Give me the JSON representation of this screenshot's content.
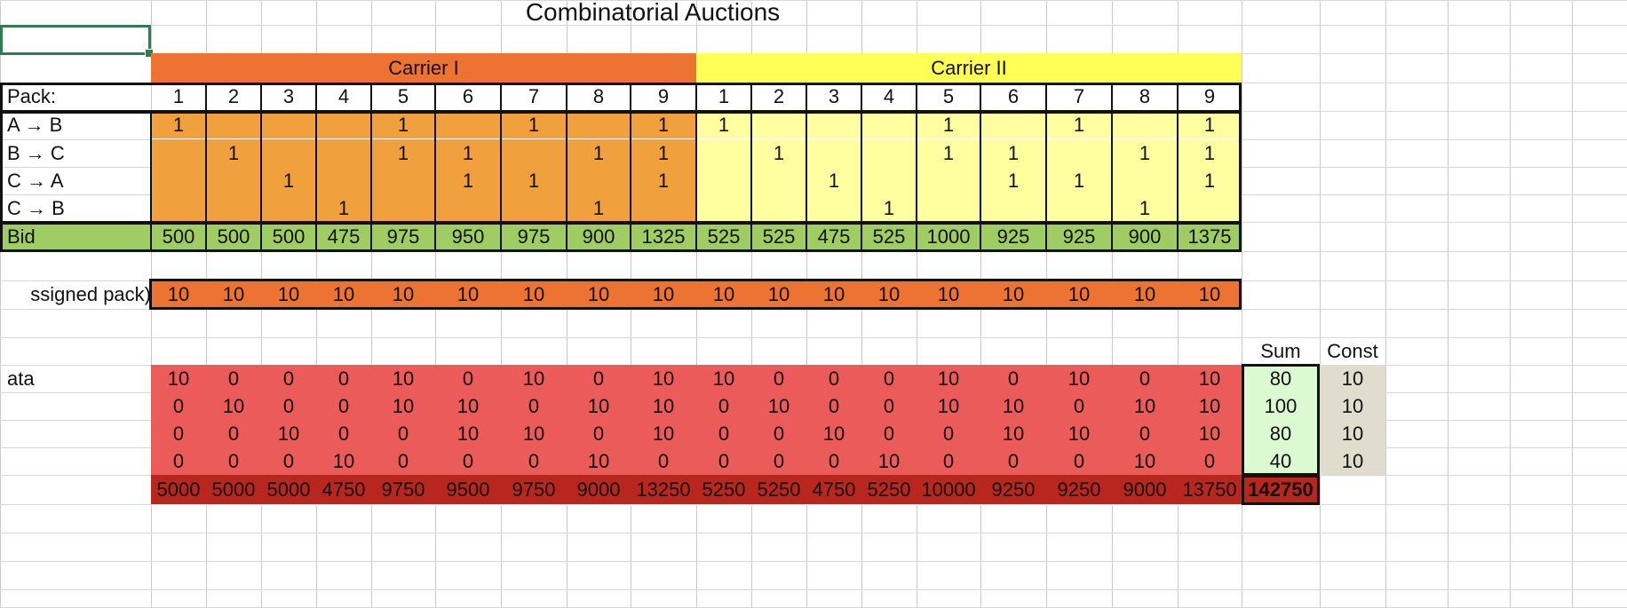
{
  "sheet": {
    "title": "Combinatorial Auctions",
    "carriers": [
      "Carrier I",
      "Carrier II"
    ],
    "pack_label": "Pack:",
    "pack_numbers": [
      "1",
      "2",
      "3",
      "4",
      "5",
      "6",
      "7",
      "8",
      "9",
      "1",
      "2",
      "3",
      "4",
      "5",
      "6",
      "7",
      "8",
      "9"
    ],
    "route_labels": [
      "A → B",
      "B → C",
      "C → A",
      "C → B"
    ],
    "route_matrix": [
      [
        "1",
        "",
        "",
        "",
        "1",
        "",
        "1",
        "",
        "1",
        "1",
        "",
        "",
        "",
        "1",
        "",
        "1",
        "",
        "1"
      ],
      [
        "",
        "1",
        "",
        "",
        "1",
        "1",
        "",
        "1",
        "1",
        "",
        "1",
        "",
        "",
        "1",
        "1",
        "",
        "1",
        "1"
      ],
      [
        "",
        "",
        "1",
        "",
        "",
        "1",
        "1",
        "",
        "1",
        "",
        "",
        "1",
        "",
        "",
        "1",
        "1",
        "",
        "1"
      ],
      [
        "",
        "",
        "",
        "1",
        "",
        "",
        "",
        "1",
        "",
        "",
        "",
        "",
        "1",
        "",
        "",
        "",
        "1",
        ""
      ]
    ],
    "bid_label": "Bid",
    "bids": [
      "500",
      "500",
      "500",
      "475",
      "975",
      "950",
      "975",
      "900",
      "1325",
      "525",
      "525",
      "475",
      "525",
      "1000",
      "925",
      "925",
      "900",
      "1375"
    ],
    "assigned_label": "ssigned pack)",
    "assigned": [
      "10",
      "10",
      "10",
      "10",
      "10",
      "10",
      "10",
      "10",
      "10",
      "10",
      "10",
      "10",
      "10",
      "10",
      "10",
      "10",
      "10",
      "10"
    ],
    "sum_header": "Sum",
    "const_header": "Const",
    "data_label": "ata",
    "data_matrix": [
      [
        "10",
        "0",
        "0",
        "0",
        "10",
        "0",
        "10",
        "0",
        "10",
        "10",
        "0",
        "0",
        "0",
        "10",
        "0",
        "10",
        "0",
        "10"
      ],
      [
        "0",
        "10",
        "0",
        "0",
        "10",
        "10",
        "0",
        "10",
        "10",
        "0",
        "10",
        "0",
        "0",
        "10",
        "10",
        "0",
        "10",
        "10"
      ],
      [
        "0",
        "0",
        "10",
        "0",
        "0",
        "10",
        "10",
        "0",
        "10",
        "0",
        "0",
        "10",
        "0",
        "0",
        "10",
        "10",
        "0",
        "10"
      ],
      [
        "0",
        "0",
        "0",
        "10",
        "0",
        "0",
        "0",
        "10",
        "0",
        "0",
        "0",
        "0",
        "10",
        "0",
        "0",
        "0",
        "10",
        "0"
      ]
    ],
    "sums": [
      "80",
      "100",
      "80",
      "40"
    ],
    "consts": [
      "10",
      "10",
      "10",
      "10"
    ],
    "totals": [
      "5000",
      "5000",
      "5000",
      "4750",
      "9750",
      "9500",
      "9750",
      "9000",
      "13250",
      "5250",
      "5250",
      "4750",
      "5250",
      "10000",
      "9250",
      "9250",
      "9000",
      "13750"
    ],
    "grand_total": "142750"
  },
  "colors": {
    "carrier1_header": "#ed7332",
    "carrier1_body": "#f0a03c",
    "carrier2_header": "#ffff55",
    "carrier2_body": "#ffff9f",
    "bid_row": "#9fcd63",
    "assigned_row": "#ed7332",
    "data_body": "#eb5b59",
    "totals_row": "#b9261e",
    "sum_cells": "#dcfad2",
    "const_cells": "#e0ddcf",
    "selection": "#2f7d4f"
  }
}
